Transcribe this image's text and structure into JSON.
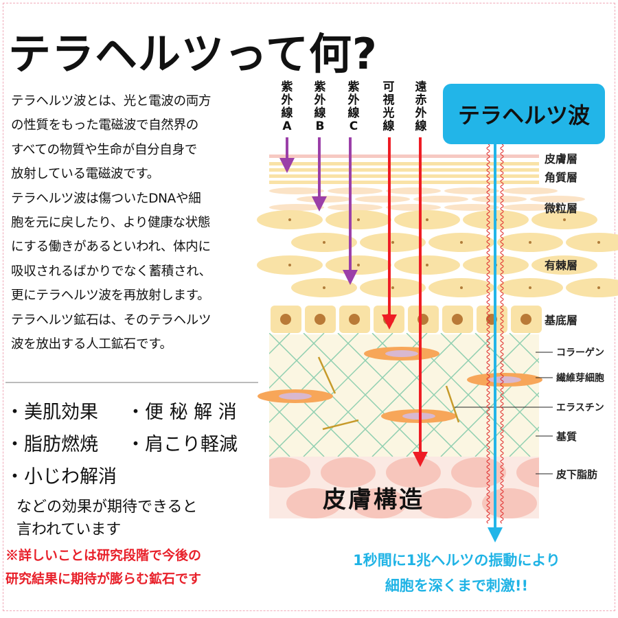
{
  "title": "テラヘルツって何?",
  "intro": "テラヘルツ波とは、光と電波の両方\nの性質をもった電磁波で自然界の\nすべての物質や生命が自分自身で\n放射している電磁波です。\nテラヘルツ波は傷ついたDNAや細\n胞を元に戻したり、より健康な状態\nにする働きがあるといわれ、体内に\n吸収されるばかりでなく蓄積され、\n更にテラヘルツ波を再放射します。\nテラヘルツ鉱石は、そのテラヘルツ\n波を放出する人工鉱石です。",
  "effects": [
    "・美肌効果",
    "・便 秘 解 消",
    "・脂肪燃焼",
    "・肩こり軽減",
    "・小じわ解消"
  ],
  "effects_note": "などの効果が期待できると\n言われています",
  "warning": "※詳しいことは研究段階で今後の\n研究結果に期待が膨らむ鉱石です",
  "diagram": {
    "rays": [
      "紫\n外\n線\nA",
      "紫\n外\n線\nB",
      "紫\n外\n線\nC",
      "可\n視\n光\n線",
      "遠\n赤\n外\n線"
    ],
    "terahertz_label": "テラヘルツ波",
    "layers": [
      "皮膚層",
      "角質層",
      "微粒層",
      "有棘層",
      "基底層",
      "コラーゲン",
      "繊維芽細胞",
      "エラスチン",
      "基質",
      "皮下脂肪"
    ],
    "skin_title": "皮膚構造",
    "colors": {
      "uv": "#9b3fa8",
      "visible": "#ee1c24",
      "terahertz": "#22b5e8",
      "epidermis": "#f9e2a6",
      "dermis": "#fbf6e2",
      "collagen": "#8fcfb0",
      "fat": "#f7c6bc",
      "fibroblast": "#f7a659"
    }
  },
  "terahertz_message": "1秒間に1兆ヘルツの振動により\n細胞を深くまで刺激!!"
}
